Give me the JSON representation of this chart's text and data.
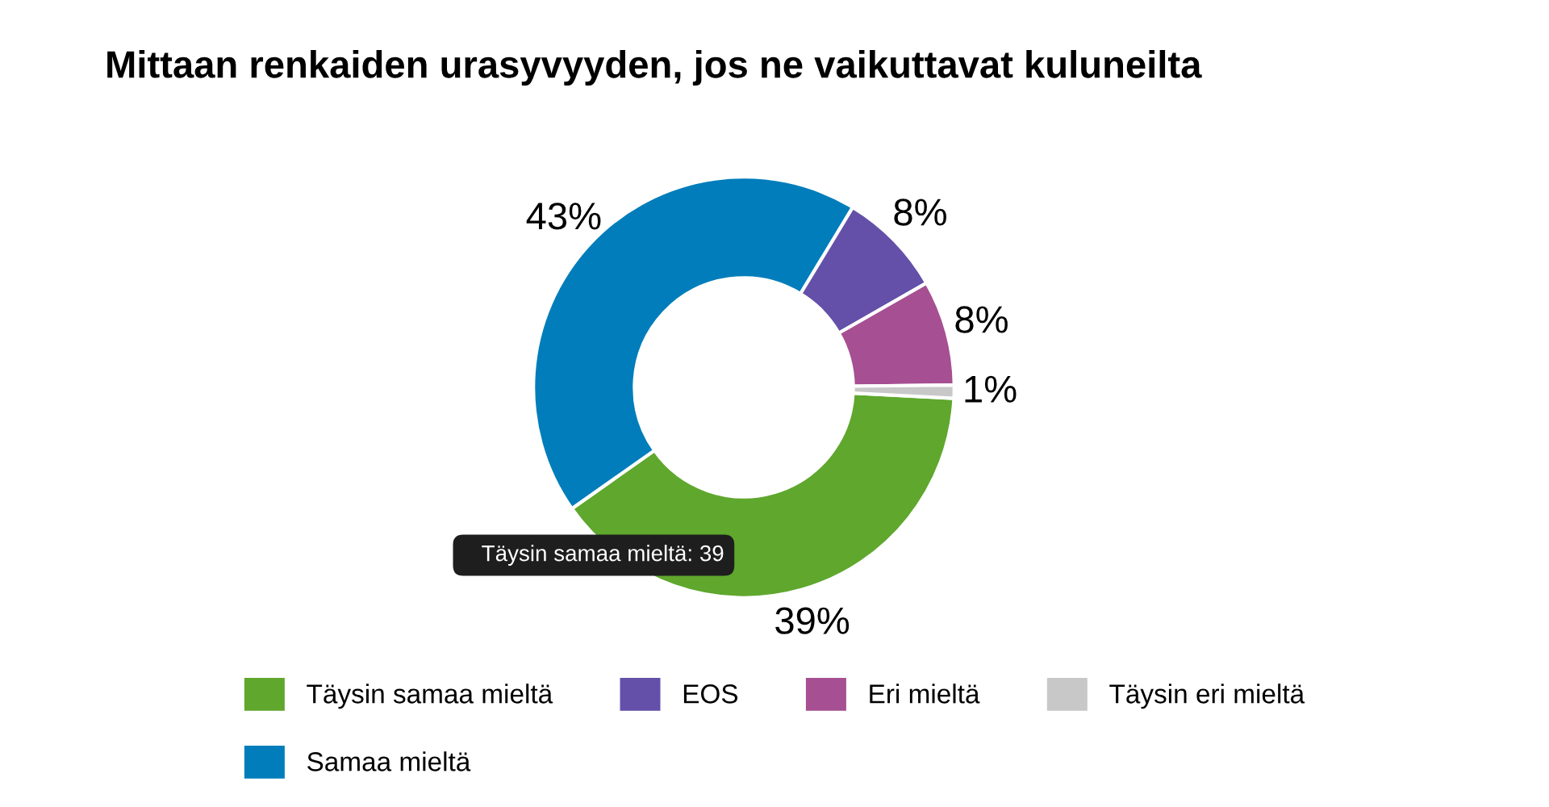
{
  "chart_data": {
    "type": "donut",
    "title": "Mittaan renkaiden urasyvyyden, jos ne vaikuttavat kuluneilta",
    "categories": [
      "Täysin samaa mieltä",
      "Samaa mieltä",
      "EOS",
      "Eri mieltä",
      "Täysin eri mieltä"
    ],
    "values": [
      39,
      43,
      8,
      8,
      1
    ],
    "colors": [
      "#5fa72d",
      "#007dba",
      "#6450a8",
      "#a64f92",
      "#c8c8c8"
    ],
    "value_labels": [
      "39%",
      "43%",
      "8%",
      "8%",
      "1%"
    ],
    "annotations": [
      "Täysin samaa mieltä: 39"
    ],
    "legend": "bottom"
  }
}
